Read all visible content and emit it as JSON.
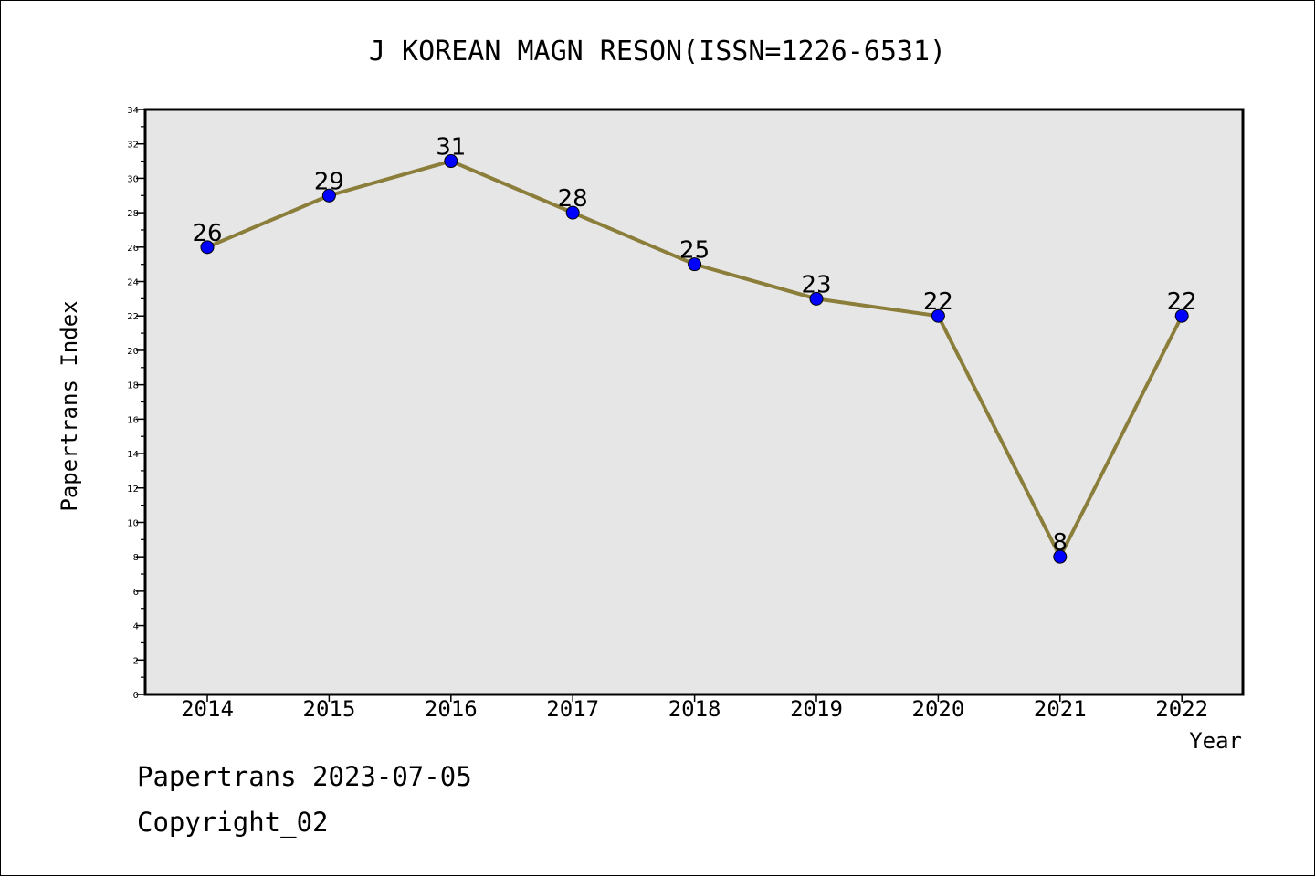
{
  "chart_data": {
    "type": "line",
    "title": "J KOREAN MAGN RESON(ISSN=1226-6531)",
    "xlabel": "Year",
    "ylabel": "Papertrans Index",
    "categories": [
      "2014",
      "2015",
      "2016",
      "2017",
      "2018",
      "2019",
      "2020",
      "2021",
      "2022"
    ],
    "series": [
      {
        "values": [
          26,
          29,
          31,
          28,
          25,
          23,
          22,
          8,
          22
        ]
      }
    ],
    "ylim": [
      0,
      34
    ],
    "ytick_step": 2,
    "yticks": [
      "0",
      "2",
      "4",
      "6",
      "8",
      "10",
      "12",
      "14",
      "16",
      "18",
      "20",
      "22",
      "24",
      "26",
      "28",
      "30",
      "32",
      "34"
    ],
    "grid": false,
    "line_color": "#8B7D3A",
    "marker_color": "#0000FF",
    "plot_background": "#E6E6E6"
  },
  "footer": {
    "date_line": "Papertrans 2023-07-05",
    "copyright": "Copyright_02"
  }
}
